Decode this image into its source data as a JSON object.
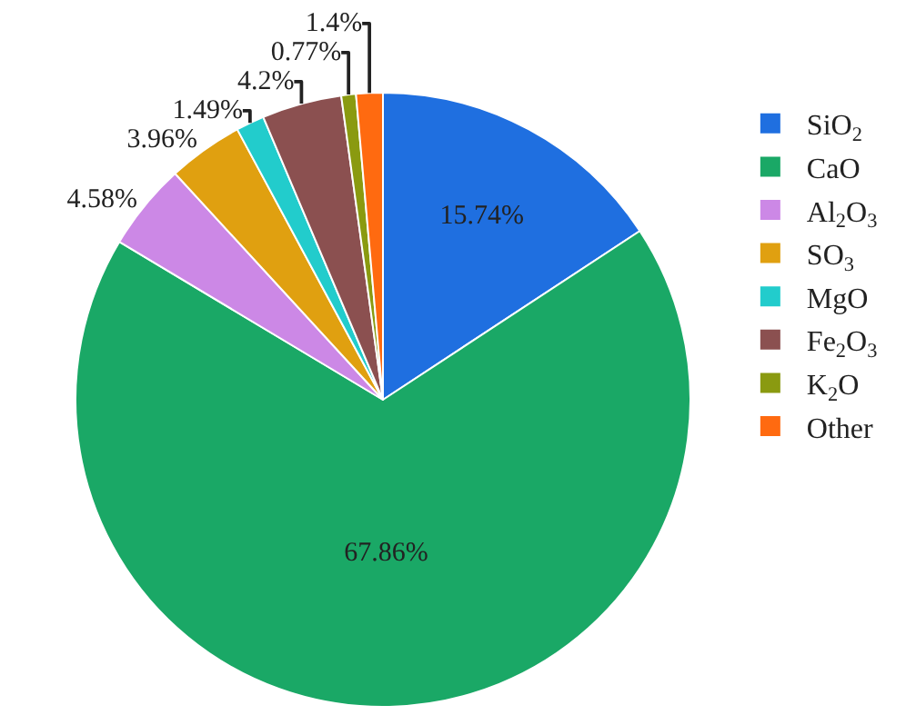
{
  "chart_data": {
    "type": "pie",
    "categories": [
      "SiO$_{2}$",
      "CaO",
      "Al$_{2}$O$_{3}$",
      "SO$_{3}$",
      "MgO",
      "Fe$_{2}$O$_{3}$",
      "K$_{2}$O",
      "Other"
    ],
    "values": [
      15.74,
      67.86,
      4.58,
      3.96,
      1.49,
      4.2,
      0.77,
      1.4
    ],
    "value_labels": [
      "15.74%",
      "67.86%",
      "4.58%",
      "3.96%",
      "1.49%",
      "4.2%",
      "0.77%",
      "1.4%"
    ],
    "colors": [
      "#1f6fe0",
      "#1aa866",
      "#cc88e6",
      "#e0a010",
      "#22cccc",
      "#8b5050",
      "#8a9a10",
      "#ff6a10"
    ],
    "legend": "right"
  }
}
